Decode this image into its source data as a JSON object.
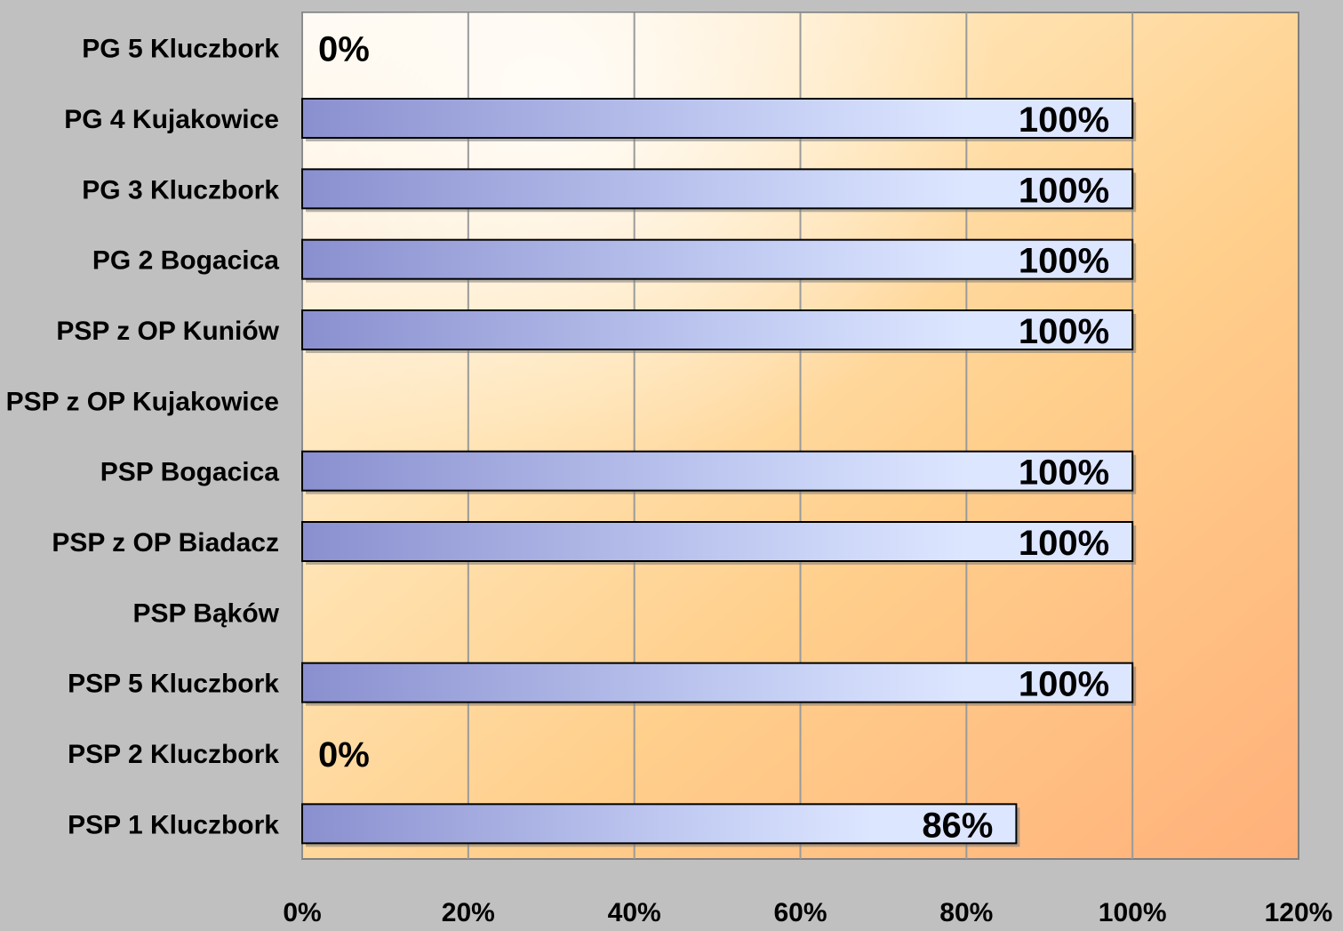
{
  "chart_data": {
    "type": "bar",
    "orientation": "horizontal",
    "categories": [
      "PG 5 Kluczbork",
      "PG 4 Kujakowice",
      "PG 3 Kluczbork",
      "PG 2 Bogacica",
      "PSP z  OP Kuniów",
      "PSP z  OP Kujakowice",
      "PSP Bogacica",
      "PSP z  OP Biadacz",
      "PSP Bąków",
      "PSP 5  Kluczbork",
      "PSP 2  Kluczbork",
      "PSP 1  Kluczbork"
    ],
    "values": [
      0,
      100,
      100,
      100,
      100,
      null,
      100,
      100,
      null,
      100,
      0,
      86
    ],
    "data_labels": [
      "0%",
      "100%",
      "100%",
      "100%",
      "100%",
      "",
      "100%",
      "100%",
      "",
      "100%",
      "0%",
      "86%"
    ],
    "xlim": [
      0,
      120
    ],
    "x_ticks": [
      0,
      20,
      40,
      60,
      80,
      100,
      120
    ],
    "x_tick_labels": [
      "0%",
      "20%",
      "40%",
      "60%",
      "80%",
      "100%",
      "120%"
    ],
    "grid": "vertical",
    "legend": "none",
    "title": "",
    "xlabel": "",
    "ylabel": ""
  },
  "colors": {
    "page_background": "#c0c0c0",
    "bar_start": "#8a8fcf",
    "bar_end": "#dde6ff",
    "bar_border": "#000000",
    "gridline": "#9a9a9a",
    "plot_light": "#fff8ef",
    "plot_warm": "#ffcf8c",
    "plot_deep": "#ffb07a",
    "text": "#000000"
  }
}
